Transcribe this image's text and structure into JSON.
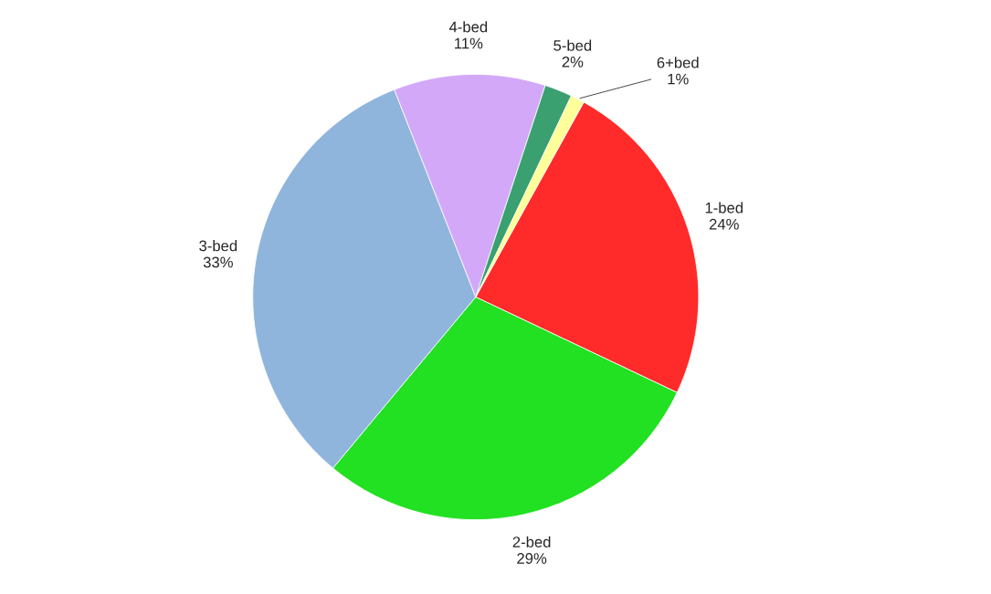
{
  "chart_data": {
    "type": "pie",
    "categories": [
      "1-bed",
      "2-bed",
      "3-bed",
      "4-bed",
      "5-bed",
      "6+bed"
    ],
    "values": [
      24,
      29,
      33,
      11,
      2,
      1
    ],
    "value_labels": [
      "24%",
      "29%",
      "33%",
      "11%",
      "2%",
      "1%"
    ],
    "colors": [
      "#ff2a2a",
      "#22e022",
      "#8fb5dc",
      "#d4a8f8",
      "#3aa070",
      "#ffff99"
    ],
    "legend": false
  }
}
